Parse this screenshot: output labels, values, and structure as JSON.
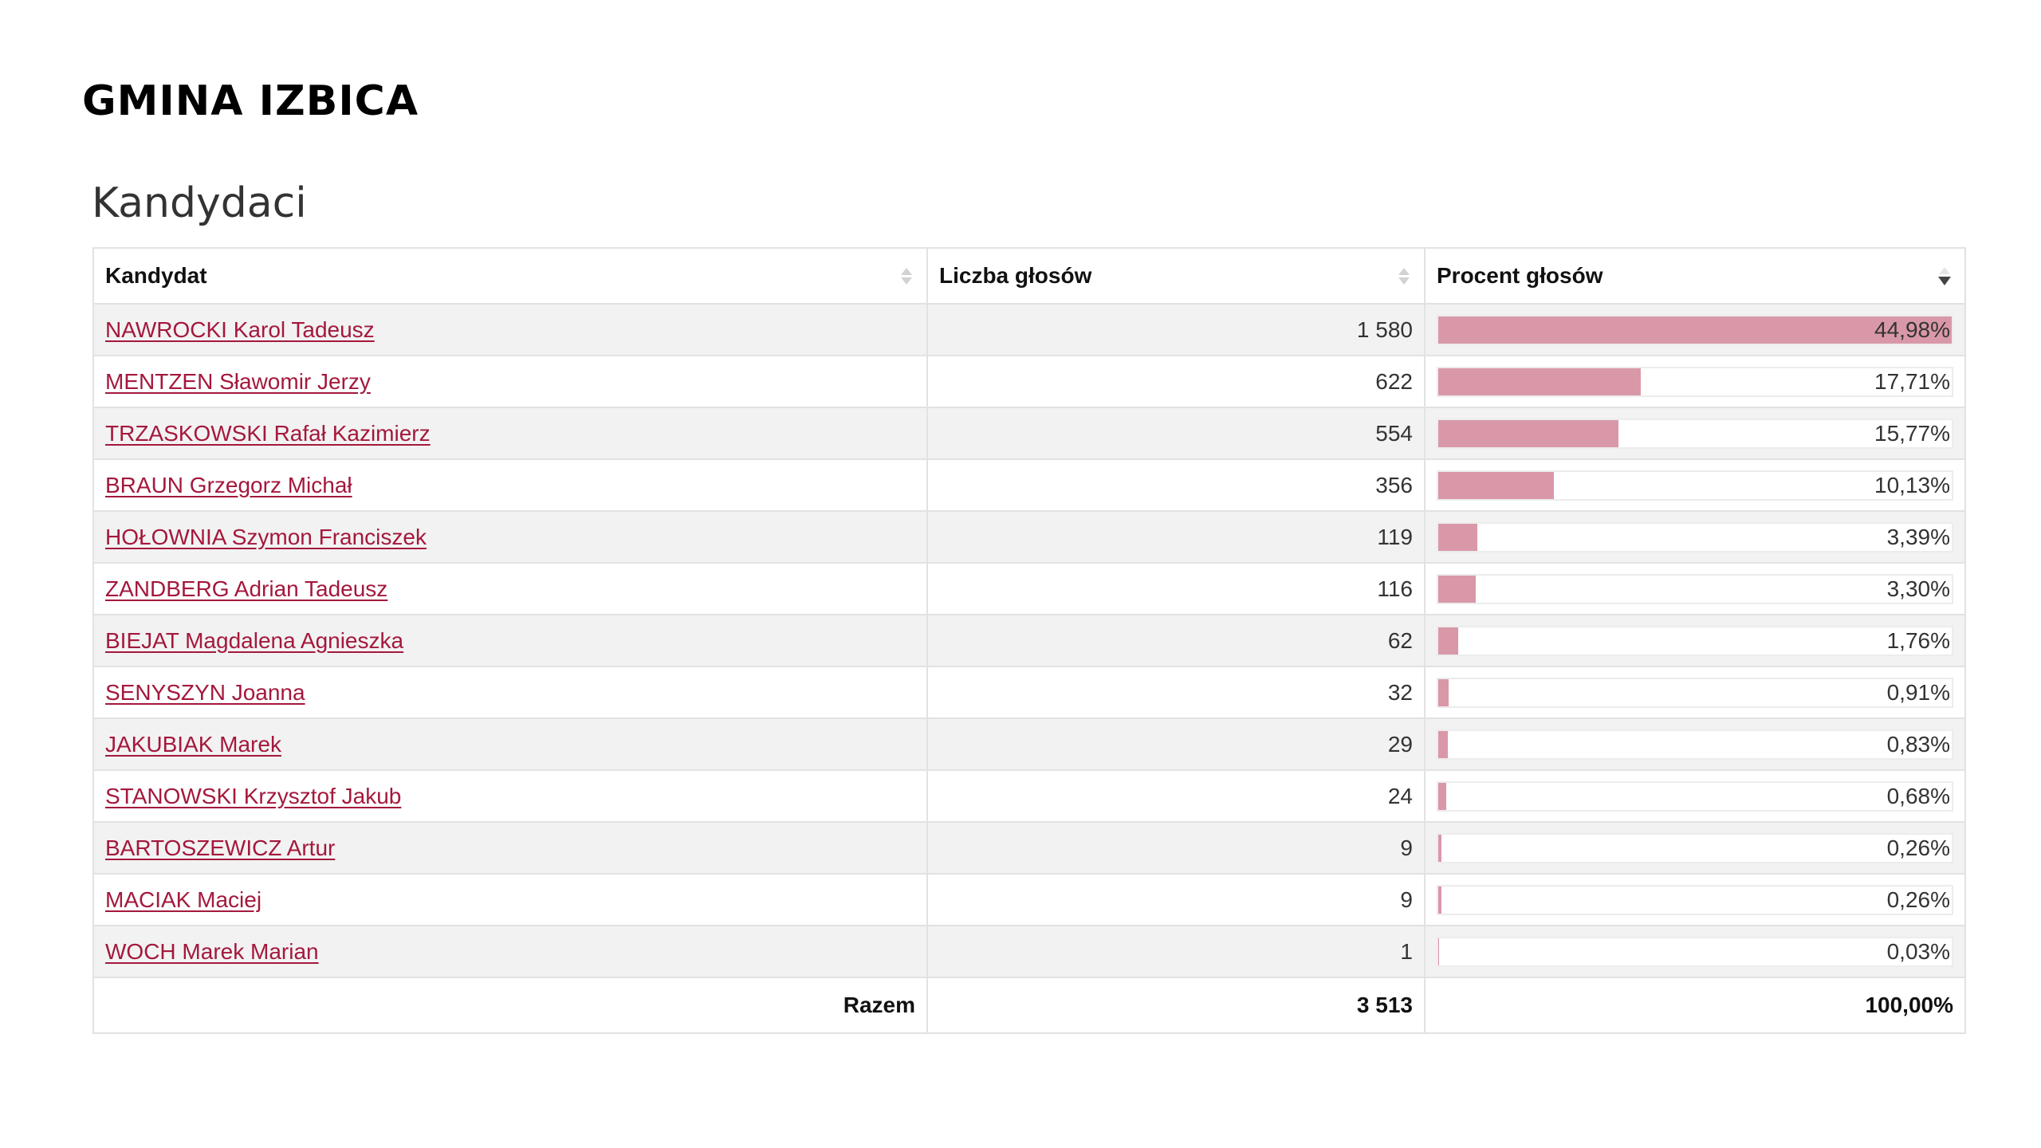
{
  "page": {
    "title": "GMINA IZBICA",
    "section_title": "Kandydaci"
  },
  "table": {
    "headers": {
      "candidate": "Kandydat",
      "votes": "Liczba głosów",
      "percent": "Procent głosów"
    },
    "sort": {
      "column": "percent",
      "direction": "desc"
    },
    "bar_color": "#d998a8",
    "link_color": "#a4183c",
    "rows": [
      {
        "name": "NAWROCKI Karol Tadeusz",
        "votes": "1 580",
        "percent": "44,98%",
        "share": 0.4498
      },
      {
        "name": "MENTZEN Sławomir Jerzy",
        "votes": "622",
        "percent": "17,71%",
        "share": 0.1771
      },
      {
        "name": "TRZASKOWSKI Rafał Kazimierz",
        "votes": "554",
        "percent": "15,77%",
        "share": 0.1577
      },
      {
        "name": "BRAUN Grzegorz Michał",
        "votes": "356",
        "percent": "10,13%",
        "share": 0.1013
      },
      {
        "name": "HOŁOWNIA Szymon Franciszek",
        "votes": "119",
        "percent": "3,39%",
        "share": 0.0339
      },
      {
        "name": "ZANDBERG Adrian Tadeusz",
        "votes": "116",
        "percent": "3,30%",
        "share": 0.033
      },
      {
        "name": "BIEJAT Magdalena Agnieszka",
        "votes": "62",
        "percent": "1,76%",
        "share": 0.0176
      },
      {
        "name": "SENYSZYN Joanna",
        "votes": "32",
        "percent": "0,91%",
        "share": 0.0091
      },
      {
        "name": "JAKUBIAK Marek",
        "votes": "29",
        "percent": "0,83%",
        "share": 0.0083
      },
      {
        "name": "STANOWSKI Krzysztof Jakub",
        "votes": "24",
        "percent": "0,68%",
        "share": 0.0068
      },
      {
        "name": "BARTOSZEWICZ Artur",
        "votes": "9",
        "percent": "0,26%",
        "share": 0.0026
      },
      {
        "name": "MACIAK Maciej",
        "votes": "9",
        "percent": "0,26%",
        "share": 0.0026
      },
      {
        "name": "WOCH Marek Marian",
        "votes": "1",
        "percent": "0,03%",
        "share": 0.0003
      }
    ],
    "footer": {
      "label": "Razem",
      "votes": "3 513",
      "percent": "100,00%"
    }
  }
}
